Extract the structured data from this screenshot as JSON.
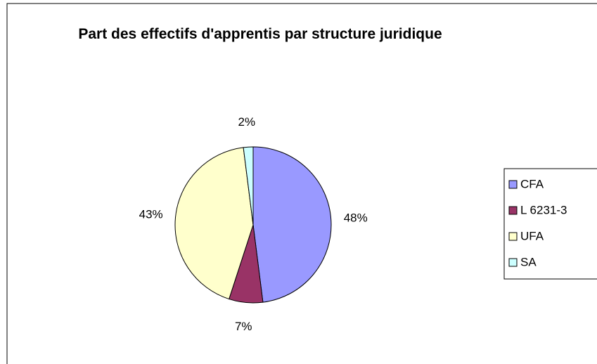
{
  "chart_data": {
    "type": "pie",
    "title": "Part des effectifs d'apprentis par structure juridique",
    "categories": [
      "CFA",
      "L 6231-3",
      "UFA",
      "SA"
    ],
    "values": [
      48,
      7,
      43,
      2
    ],
    "value_labels": [
      "48%",
      "7%",
      "43%",
      "2%"
    ],
    "colors": [
      "#9999ff",
      "#993366",
      "#ffffcc",
      "#ccffff"
    ],
    "legend": "right"
  }
}
